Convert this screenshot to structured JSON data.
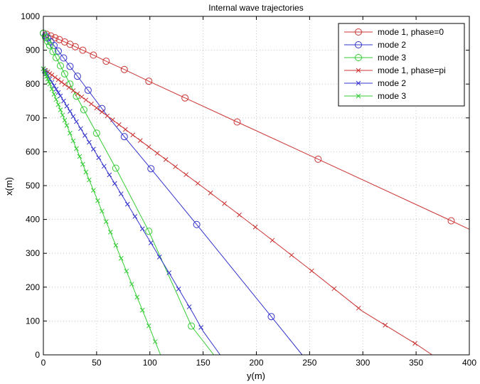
{
  "chart_data": {
    "type": "line",
    "title": "Internal wave trajectories",
    "xlabel": "y(m)",
    "ylabel": "x(m)",
    "xlim": [
      0,
      400
    ],
    "ylim": [
      0,
      1000
    ],
    "xticks": [
      "0",
      "50",
      "100",
      "150",
      "200",
      "250",
      "300",
      "350",
      "400"
    ],
    "yticks": [
      "0",
      "100",
      "200",
      "300",
      "400",
      "500",
      "600",
      "700",
      "800",
      "900",
      "1000"
    ],
    "grid": true,
    "legend_position": "top-right",
    "series": [
      {
        "name": "mode 1, phase=0",
        "color": "#cc3333",
        "marker": "circle",
        "x": [
          0,
          5,
          10,
          16,
          24,
          35,
          48,
          60,
          76,
          100,
          133,
          182,
          258,
          383,
          400
        ],
        "y": [
          950,
          945,
          938,
          930,
          919,
          903,
          884,
          866,
          843,
          807,
          759,
          688,
          578,
          396,
          371
        ],
        "marker_x": [
          0,
          3,
          7,
          11,
          15,
          20,
          25,
          30,
          37,
          47,
          59,
          76,
          99,
          133,
          182,
          258,
          383
        ]
      },
      {
        "name": "mode 2",
        "color": "#3333cc",
        "marker": "circle",
        "x": [
          0,
          10,
          20,
          40,
          60,
          80,
          101,
          144,
          214,
          243
        ],
        "y": [
          950,
          914,
          873,
          790,
          707,
          629,
          550,
          385,
          113,
          0
        ],
        "marker_x": [
          0,
          2,
          4,
          7,
          10,
          14,
          19,
          25,
          32,
          42,
          55,
          76,
          101,
          144,
          214
        ]
      },
      {
        "name": "mode 3",
        "color": "#33cc33",
        "marker": "circle",
        "x": [
          0,
          10,
          20,
          30,
          50,
          70,
          99,
          139,
          160
        ],
        "y": [
          950,
          890,
          830,
          770,
          655,
          540,
          365,
          85,
          0
        ],
        "marker_x": [
          0,
          2,
          4,
          6,
          9,
          12,
          16,
          20,
          25,
          31,
          38,
          50,
          68,
          99,
          139
        ]
      },
      {
        "name": "mode 1, phase=pi",
        "color": "#cc3333",
        "marker": "x",
        "x": [
          0,
          10,
          20,
          40,
          60,
          100,
          150,
          200,
          250,
          300,
          350,
          365
        ],
        "y": [
          845,
          822,
          799,
          753,
          706,
          612,
          495,
          375,
          253,
          128,
          32,
          0
        ],
        "marker_x": [
          0,
          2,
          4,
          6,
          8,
          11,
          14,
          17,
          20,
          24,
          28,
          32,
          36,
          40,
          45,
          50,
          55,
          60,
          65,
          71,
          77,
          84,
          91,
          99,
          107,
          115,
          124,
          134,
          145,
          157,
          170,
          184,
          199,
          215,
          233,
          252,
          273,
          296,
          321,
          349
        ]
      },
      {
        "name": "mode 2",
        "color": "#3333cc",
        "marker": "x",
        "x": [
          0,
          10,
          20,
          40,
          60,
          80,
          100,
          120,
          140,
          150,
          166
        ],
        "y": [
          845,
          795,
          745,
          643,
          542,
          440,
          336,
          232,
          126,
          70,
          0
        ],
        "marker_x": [
          0,
          1,
          2,
          3,
          4,
          6,
          8,
          10,
          12,
          14,
          16,
          19,
          22,
          25,
          28,
          31,
          35,
          39,
          43,
          47,
          52,
          57,
          62,
          67,
          73,
          79,
          86,
          93,
          101,
          109,
          118,
          127,
          137,
          148
        ]
      },
      {
        "name": "mode 3",
        "color": "#33cc33",
        "marker": "x",
        "x": [
          0,
          10,
          20,
          30,
          40,
          50,
          60,
          70,
          80,
          90,
          100,
          110
        ],
        "y": [
          845,
          770,
          693,
          617,
          540,
          463,
          386,
          308,
          232,
          155,
          78,
          0
        ],
        "marker_x": [
          0,
          1,
          2,
          3,
          4,
          5,
          6,
          8,
          10,
          12,
          14,
          16,
          18,
          20,
          22,
          25,
          28,
          31,
          34,
          37,
          40,
          43,
          47,
          51,
          55,
          59,
          63,
          68,
          73,
          78,
          83,
          88,
          93,
          99,
          105
        ]
      }
    ]
  }
}
